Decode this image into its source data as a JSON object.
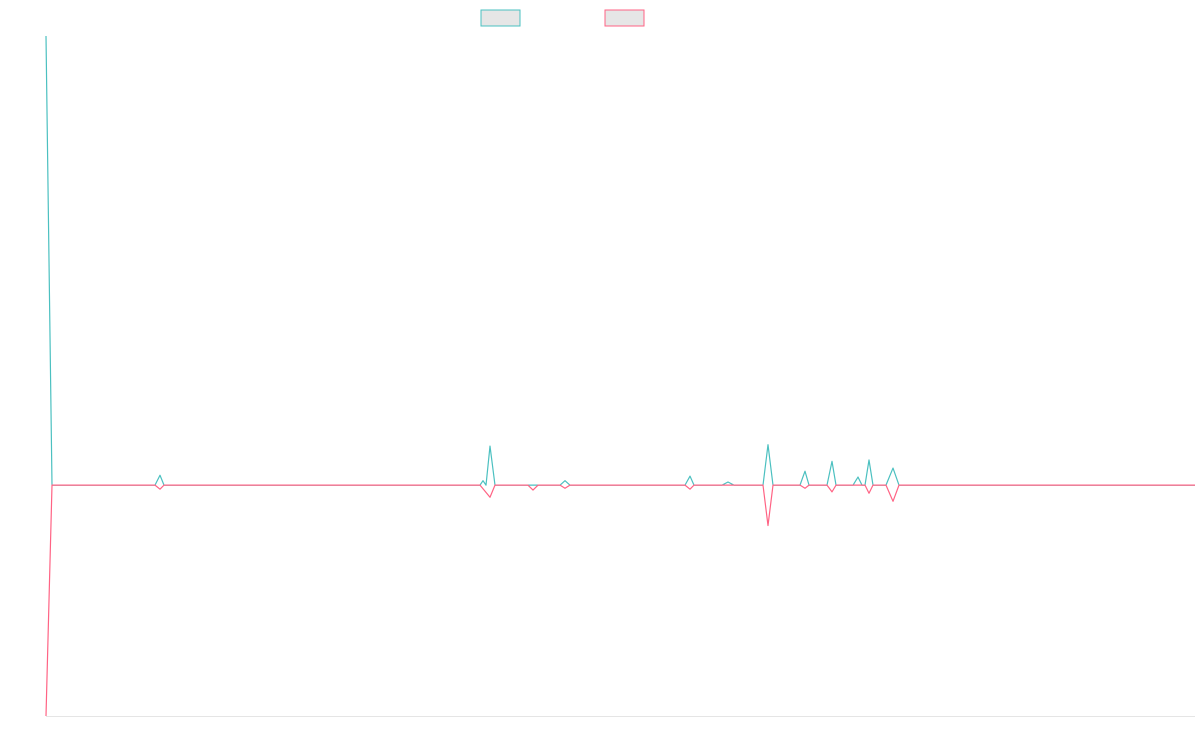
{
  "chart_data": {
    "type": "line",
    "xlim": [
      0,
      1149
    ],
    "ylim": [
      -51.4,
      100
    ],
    "series": [
      {
        "color": "#4bc0c0",
        "x": [
          0,
          6,
          109,
          114,
          118,
          434,
          437,
          440,
          444,
          449,
          514,
          519,
          524,
          639,
          644,
          648,
          676,
          682,
          688,
          717,
          722,
          727,
          754,
          759,
          763,
          781,
          786,
          790,
          807,
          812,
          816,
          819,
          823,
          827,
          840,
          847,
          853,
          1149
        ],
        "values": [
          100,
          0,
          0,
          2.2,
          0,
          0,
          1,
          0,
          8.7,
          0,
          0,
          1,
          0,
          0,
          2,
          0,
          0,
          0.7,
          0,
          0,
          9,
          0,
          0,
          3.1,
          0,
          0,
          5.3,
          0,
          0,
          1.8,
          0,
          0,
          5.6,
          0,
          0,
          3.8,
          0,
          0
        ]
      },
      {
        "color": "#ff6384",
        "x": [
          0,
          6,
          109,
          114,
          118,
          434,
          444,
          449,
          482,
          487,
          492,
          514,
          519,
          524,
          639,
          644,
          648,
          717,
          722,
          727,
          754,
          759,
          763,
          781,
          786,
          790,
          819,
          823,
          827,
          840,
          847,
          853,
          1149
        ],
        "values": [
          -51.4,
          0,
          0,
          -0.9,
          0,
          0,
          -2.7,
          0,
          0,
          -1.1,
          0,
          0,
          -0.7,
          0,
          0,
          -0.9,
          0,
          0,
          -9,
          0,
          0,
          -0.7,
          0,
          0,
          -1.5,
          0,
          0,
          -1.8,
          0,
          0,
          -3.6,
          0,
          0
        ]
      }
    ]
  }
}
